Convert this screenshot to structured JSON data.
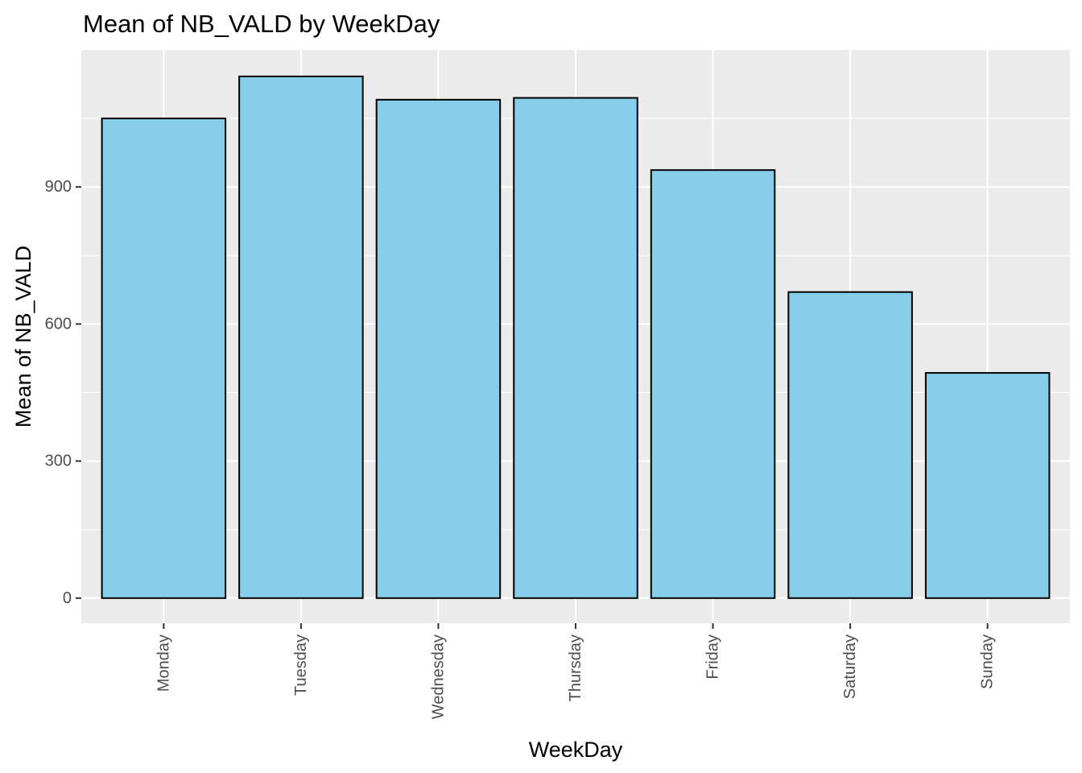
{
  "chart_data": {
    "type": "bar",
    "title": "Mean of NB_VALD by WeekDay",
    "xlabel": "WeekDay",
    "ylabel": "Mean of NB_VALD",
    "categories": [
      "Monday",
      "Tuesday",
      "Wednesday",
      "Thursday",
      "Friday",
      "Saturday",
      "Sunday"
    ],
    "values": [
      1050,
      1142,
      1091,
      1095,
      937,
      670,
      493
    ],
    "ylim": [
      -55,
      1200
    ],
    "yticks": [
      0,
      300,
      600,
      900
    ],
    "ytick_labels": [
      "0",
      "300",
      "600",
      "900"
    ],
    "grid": true,
    "colors": {
      "panel_background": "#ebebeb",
      "gridline": "#ffffff",
      "bar_fill": "#87ceeb",
      "bar_stroke": "#000000",
      "tick_text": "#4d4d4d",
      "tick_mark": "#333333"
    }
  }
}
